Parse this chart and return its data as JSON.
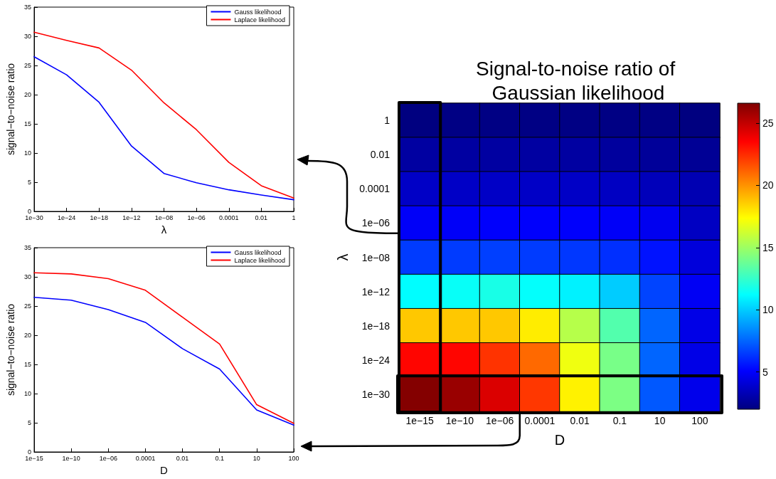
{
  "chart_data": [
    {
      "type": "line",
      "xlabel": "λ",
      "ylabel": "signal−to−noise ratio",
      "categories": [
        "1e−30",
        "1e−24",
        "1e−18",
        "1e−12",
        "1e−08",
        "1e−06",
        "0.0001",
        "0.01",
        "1"
      ],
      "series": [
        {
          "name": "Gauss likelihood",
          "color": "#0000ff",
          "values": [
            26.5,
            23.4,
            18.7,
            11.2,
            6.5,
            4.9,
            3.7,
            2.8,
            2.0
          ]
        },
        {
          "name": "Laplace likelihood",
          "color": "#ff0000",
          "values": [
            30.7,
            29.3,
            28.0,
            24.2,
            18.6,
            14.0,
            8.4,
            4.4,
            2.3
          ]
        }
      ],
      "ylim": [
        0,
        35
      ],
      "yticks": [
        0,
        5,
        10,
        15,
        20,
        25,
        30,
        35
      ],
      "legend": "top right"
    },
    {
      "type": "line",
      "xlabel": "D",
      "ylabel": "signal−to−noise ratio",
      "categories": [
        "1e−15",
        "1e−10",
        "1e−06",
        "0.0001",
        "0.01",
        "0.1",
        "10",
        "100"
      ],
      "series": [
        {
          "name": "Gauss likelihood",
          "color": "#0000ff",
          "values": [
            26.5,
            26.0,
            24.4,
            22.2,
            17.7,
            14.2,
            7.2,
            4.6
          ]
        },
        {
          "name": "Laplace likelihood",
          "color": "#ff0000",
          "values": [
            30.7,
            30.5,
            29.7,
            27.7,
            23.1,
            18.5,
            8.1,
            4.9
          ]
        }
      ],
      "ylim": [
        0,
        35
      ],
      "yticks": [
        0,
        5,
        10,
        15,
        20,
        25,
        30,
        35
      ],
      "legend": "top right"
    },
    {
      "type": "heatmap",
      "title": "Signal-to-noise ratio of Gaussian likelihood",
      "xlabel": "D",
      "ylabel": "λ",
      "categories": [
        "1e−15",
        "1e−10",
        "1e−06",
        "0.0001",
        "0.01",
        "0.1",
        "10",
        "100"
      ],
      "y_categories": [
        "1",
        "0.01",
        "0.0001",
        "1e−06",
        "1e−08",
        "1e−12",
        "1e−18",
        "1e−24",
        "1e−30"
      ],
      "cells": [
        [
          2.0,
          2.1,
          2.1,
          2.1,
          2.1,
          2.1,
          2.1,
          2.0
        ],
        [
          2.8,
          2.8,
          2.8,
          2.8,
          2.8,
          2.7,
          2.6,
          2.5
        ],
        [
          3.7,
          3.7,
          3.7,
          3.7,
          3.7,
          3.6,
          3.4,
          3.2
        ],
        [
          4.9,
          4.9,
          5.0,
          5.0,
          5.0,
          4.9,
          4.7,
          3.6
        ],
        [
          6.5,
          6.5,
          6.6,
          6.5,
          6.4,
          6.2,
          5.5,
          4.2
        ],
        [
          11.2,
          11.4,
          11.8,
          11.3,
          10.9,
          10.0,
          6.7,
          4.8
        ],
        [
          18.7,
          18.7,
          18.7,
          17.8,
          15.6,
          13.2,
          7.5,
          4.5
        ],
        [
          23.4,
          23.4,
          22.3,
          21.0,
          17.0,
          14.1,
          7.5,
          4.5
        ],
        [
          26.5,
          26.0,
          24.4,
          22.2,
          17.7,
          14.2,
          7.2,
          4.6
        ]
      ],
      "clim": [
        2.0,
        26.6
      ],
      "cticks": [
        5,
        10,
        15,
        20,
        25
      ]
    }
  ]
}
